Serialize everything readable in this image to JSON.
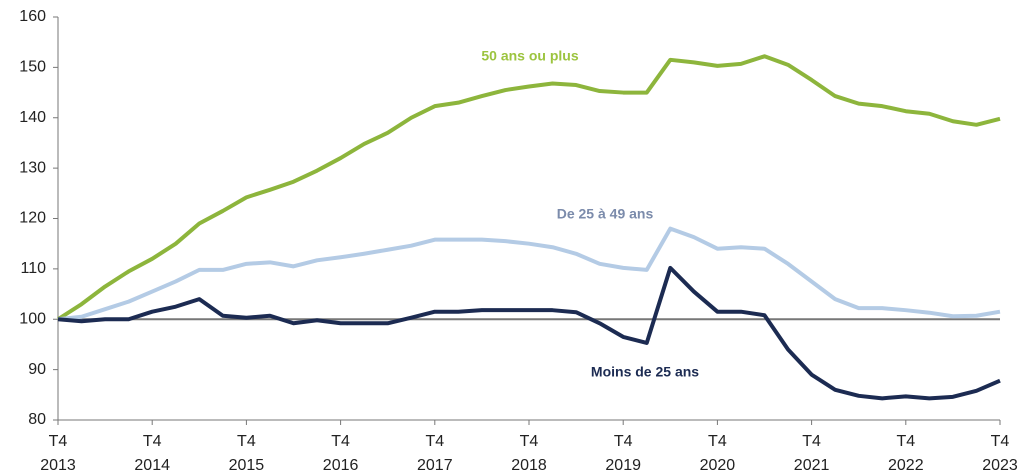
{
  "chart_data": {
    "type": "line",
    "categories": [
      "T4 2013",
      null,
      null,
      null,
      "T4 2014",
      null,
      null,
      null,
      "T4 2015",
      null,
      null,
      null,
      "T4 2016",
      null,
      null,
      null,
      "T4 2017",
      null,
      null,
      null,
      "T4 2018",
      null,
      null,
      null,
      "T4 2019",
      null,
      null,
      null,
      "T4 2020",
      null,
      null,
      null,
      "T4 2021",
      null,
      null,
      null,
      "T4 2022",
      null,
      null,
      null,
      "T4 2023"
    ],
    "series": [
      {
        "name": "50 ans ou plus",
        "color": "#8db53c",
        "label_color": "#9cc43f",
        "values": [
          100,
          103,
          106.5,
          109.5,
          112,
          115,
          119,
          121.5,
          124.2,
          125.7,
          127.3,
          129.5,
          132,
          134.8,
          137,
          140,
          142.3,
          143,
          144.3,
          145.5,
          146.2,
          146.8,
          146.5,
          145.3,
          145,
          145,
          151.5,
          151,
          150.3,
          150.7,
          152.2,
          150.5,
          147.5,
          144.3,
          142.8,
          142.3,
          141.3,
          140.8,
          139.3,
          138.6,
          139.8
        ]
      },
      {
        "name": "De 25 à 49 ans",
        "color": "#b4cbe5",
        "label_color": "#7b8bab",
        "values": [
          100,
          100.5,
          102,
          103.5,
          105.5,
          107.5,
          109.8,
          109.8,
          111,
          111.3,
          110.5,
          111.7,
          112.3,
          113,
          113.8,
          114.6,
          115.8,
          115.8,
          115.8,
          115.5,
          115,
          114.3,
          113,
          111,
          110.2,
          109.8,
          118,
          116.3,
          114,
          114.3,
          114,
          111,
          107.5,
          104,
          102.2,
          102.2,
          101.8,
          101.3,
          100.6,
          100.7,
          101.5
        ]
      },
      {
        "name": "Moins de 25 ans",
        "color": "#1c2b52",
        "label_color": "#1c2b52",
        "values": [
          100,
          99.6,
          100,
          100,
          101.5,
          102.5,
          104,
          100.7,
          100.3,
          100.7,
          99.2,
          99.8,
          99.2,
          99.2,
          99.2,
          100.3,
          101.5,
          101.5,
          101.8,
          101.8,
          101.8,
          101.8,
          101.4,
          99.2,
          96.5,
          95.3,
          110.2,
          105.5,
          101.5,
          101.5,
          100.8,
          94,
          89,
          86,
          84.8,
          84.3,
          84.7,
          84.3,
          84.6,
          85.8,
          87.8
        ]
      }
    ],
    "reference_line": 100,
    "ylim": [
      80,
      160
    ],
    "yticks": [
      80,
      90,
      100,
      110,
      120,
      130,
      140,
      150,
      160
    ],
    "grid": false
  }
}
